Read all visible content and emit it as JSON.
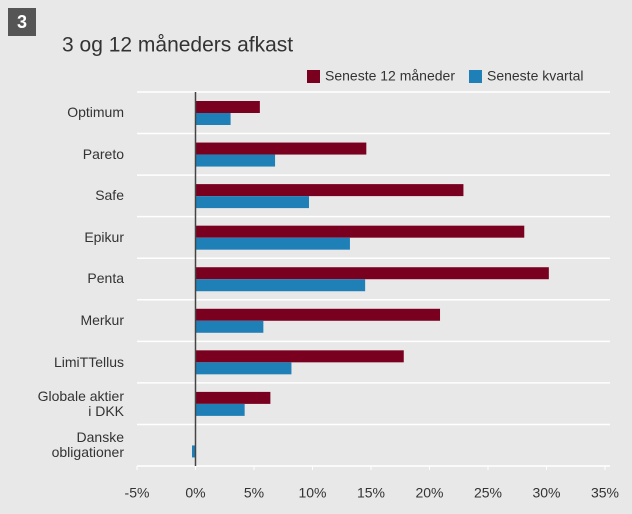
{
  "chart_data": {
    "type": "hbar",
    "badge": "3",
    "title": "3 og 12 måneders afkast",
    "categories": [
      "Optimum",
      "Pareto",
      "Safe",
      "Epikur",
      "Penta",
      "Merkur",
      "LimiTTellus",
      "Globale aktier i DKK",
      "Danske obligationer"
    ],
    "series": [
      {
        "name": "Seneste 12 måneder",
        "color": "#7a0020",
        "values": [
          5.5,
          14.6,
          22.9,
          28.1,
          30.2,
          20.9,
          17.8,
          6.4,
          null
        ]
      },
      {
        "name": "Seneste kvartal",
        "color": "#1f80b8",
        "values": [
          3.0,
          6.8,
          9.7,
          13.2,
          14.5,
          5.8,
          8.2,
          4.2,
          -0.3
        ]
      }
    ],
    "xlim": [
      -5,
      35
    ],
    "xticks": [
      {
        "value": -5,
        "label": "-5%"
      },
      {
        "value": 0,
        "label": "0%"
      },
      {
        "value": 5,
        "label": "5%"
      },
      {
        "value": 10,
        "label": "10%"
      },
      {
        "value": 15,
        "label": "15%"
      },
      {
        "value": 20,
        "label": "20%"
      },
      {
        "value": 25,
        "label": "25%"
      },
      {
        "value": 30,
        "label": "30%"
      },
      {
        "value": 35,
        "label": "35%"
      }
    ],
    "grid": false,
    "legend": "top-right"
  }
}
